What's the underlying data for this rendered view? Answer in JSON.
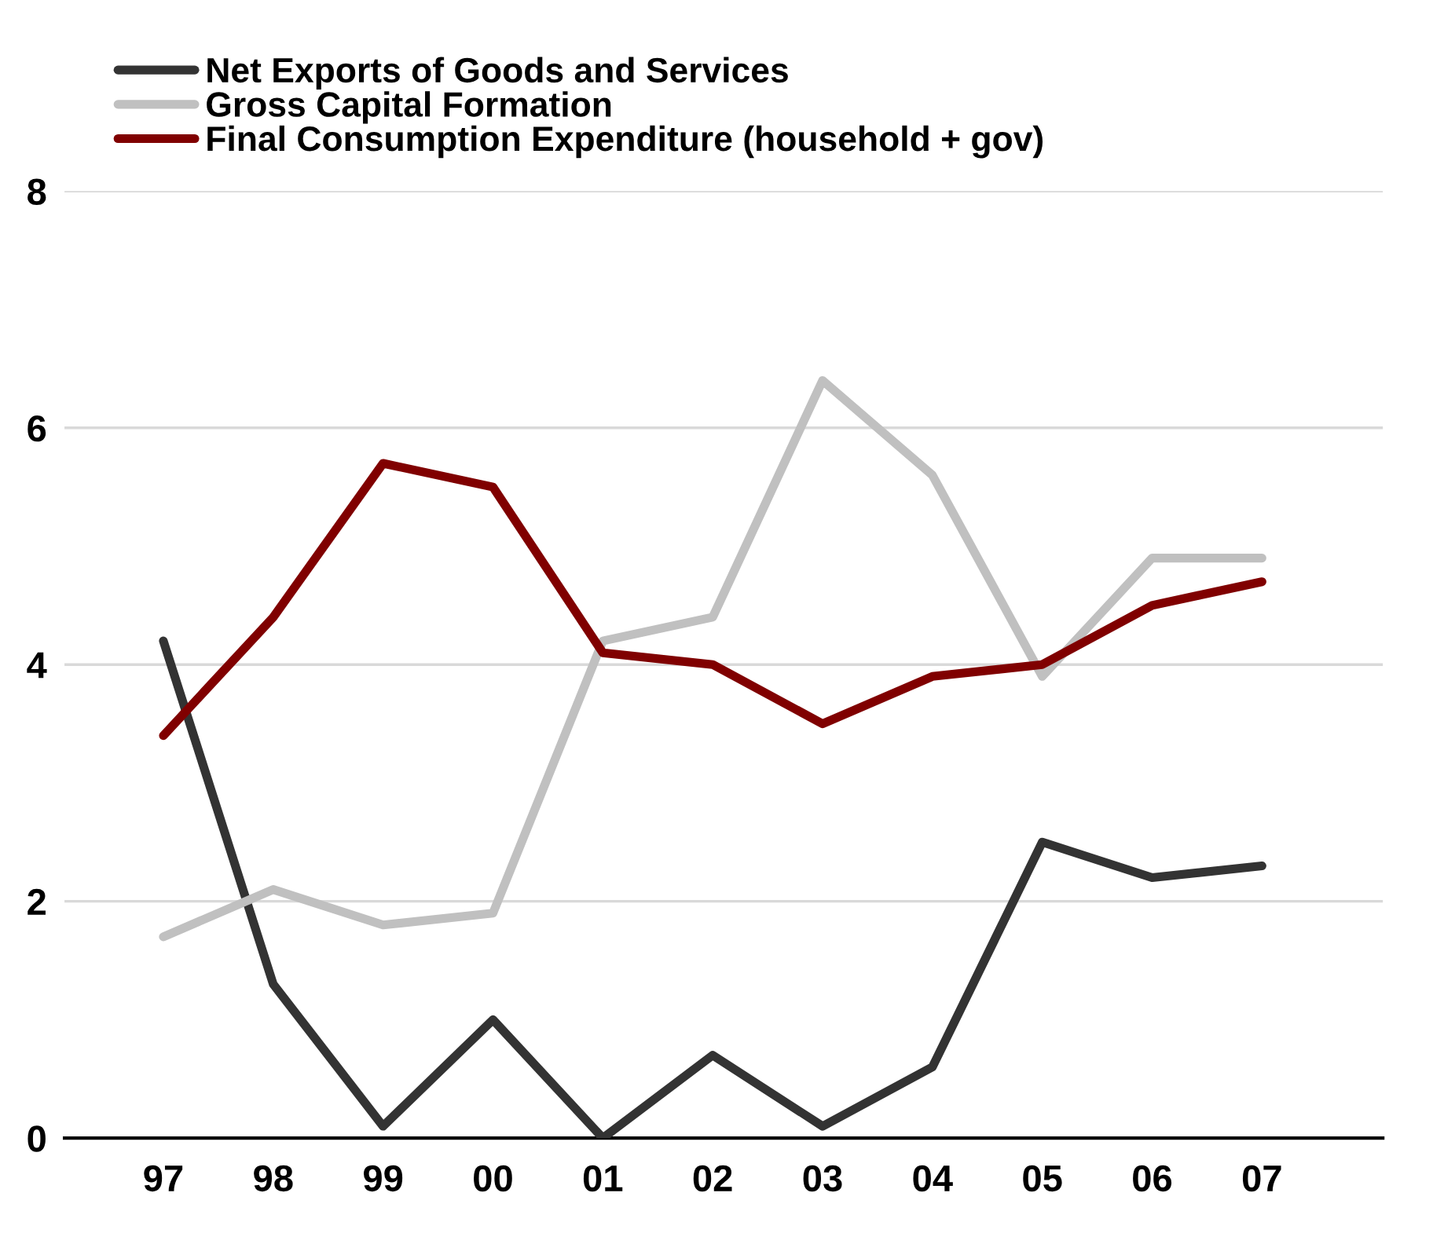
{
  "chart_data": {
    "type": "line",
    "categories": [
      "97",
      "98",
      "99",
      "00",
      "01",
      "02",
      "03",
      "04",
      "05",
      "06",
      "07"
    ],
    "ylim": [
      0,
      8
    ],
    "yticks": [
      0,
      2,
      4,
      6,
      8
    ],
    "grid": "y",
    "legend": "top left",
    "marker": "none",
    "line_style": "solid",
    "series": [
      {
        "name": "Net Exports of Goods and Services",
        "color": "#333333",
        "values": [
          4.2,
          1.3,
          0.1,
          1.0,
          0,
          0.7,
          0.1,
          0.6,
          2.5,
          2.2,
          2.3
        ]
      },
      {
        "name": "Gross Capital Formation",
        "color": "#c0c0c0",
        "values": [
          1.7,
          2.1,
          1.8,
          1.9,
          4.2,
          4.4,
          6.4,
          5.6,
          3.9,
          4.9,
          4.9
        ]
      },
      {
        "name": "Final Consumption Expenditure (household + gov)",
        "color": "#800000",
        "values": [
          3.4,
          4.4,
          5.7,
          5.5,
          4.1,
          4.0,
          3.5,
          3.9,
          4.0,
          4.5,
          4.7
        ]
      }
    ]
  }
}
